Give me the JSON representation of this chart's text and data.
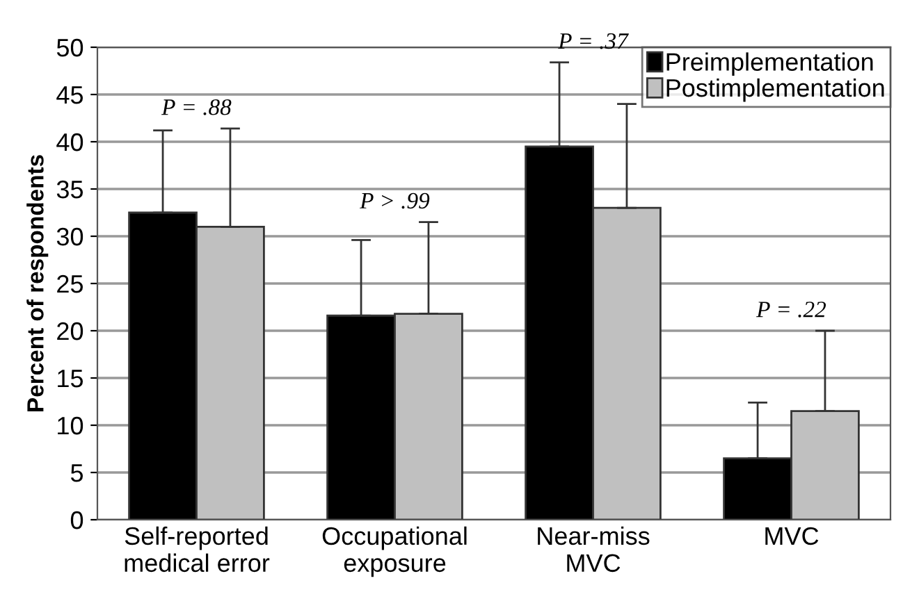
{
  "chart_data": {
    "type": "bar",
    "ylabel": "Percent of respondents",
    "categories": [
      "Self-reported\nmedical error",
      "Occupational\nexposure",
      "Near-miss\nMVC",
      "MVC"
    ],
    "series": [
      {
        "name": "Preimplementation",
        "color": "#000000",
        "values": [
          32.5,
          21.6,
          39.5,
          6.5
        ],
        "errors": [
          [
            32.5,
            41.2
          ],
          [
            21.6,
            29.6
          ],
          [
            39.5,
            48.4
          ],
          [
            6.5,
            12.4
          ]
        ]
      },
      {
        "name": "Postimplementation",
        "color": "#c0c0c0",
        "values": [
          31.0,
          21.8,
          33.0,
          11.5
        ],
        "errors": [
          [
            31.0,
            41.4
          ],
          [
            21.8,
            31.5
          ],
          [
            33.0,
            44.0
          ],
          [
            11.5,
            20.0
          ]
        ]
      }
    ],
    "ylim": [
      0,
      50
    ],
    "yticks": [
      0,
      5,
      10,
      15,
      20,
      25,
      30,
      35,
      40,
      45,
      50
    ],
    "grid": "y",
    "legend": "top right",
    "annotations": [
      "P = .88",
      "P > .99",
      "P = .37",
      "P = .22"
    ]
  }
}
